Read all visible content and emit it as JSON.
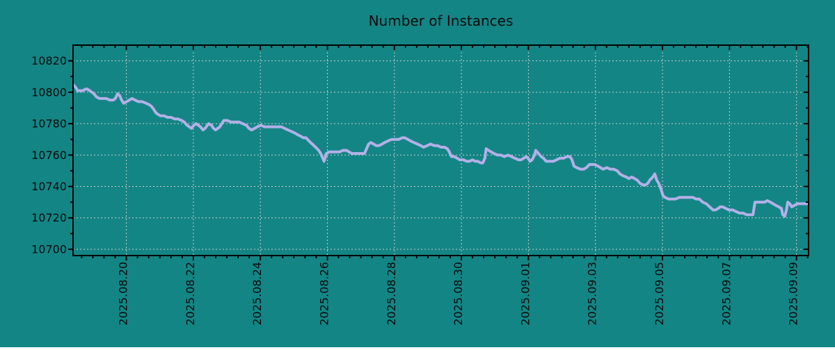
{
  "style": {
    "background": "#148585",
    "line_color": "#b3b0e8",
    "grid_color": "#cccccc",
    "frame_color": "#000000",
    "text_color": "#0a0a0a"
  },
  "chart_data": {
    "type": "line",
    "title": "Number of Instances",
    "xlabel": "",
    "ylabel": "",
    "legend": false,
    "grid": true,
    "x_unit": "days since 2025-08-18 00:00",
    "x_range_days": [
      0.41,
      22.36
    ],
    "y_range": [
      10696,
      10830
    ],
    "y_ticks": [
      10700,
      10720,
      10740,
      10760,
      10780,
      10800,
      10820
    ],
    "y_minor_tick_interval": 10,
    "x_minor_tick_interval_days": 0.3333,
    "x_ticks": [
      {
        "day": 2,
        "label": "2025.08.20"
      },
      {
        "day": 4,
        "label": "2025.08.22"
      },
      {
        "day": 6,
        "label": "2025.08.24"
      },
      {
        "day": 8,
        "label": "2025.08.26"
      },
      {
        "day": 10,
        "label": "2025.08.28"
      },
      {
        "day": 12,
        "label": "2025.08.30"
      },
      {
        "day": 14,
        "label": "2025.09.01"
      },
      {
        "day": 16,
        "label": "2025.09.03"
      },
      {
        "day": 18,
        "label": "2025.09.05"
      },
      {
        "day": 20,
        "label": "2025.09.07"
      },
      {
        "day": 22,
        "label": "2025.09.09"
      }
    ],
    "series": [
      {
        "name": "instances",
        "color": "#b3b0e8",
        "points": [
          [
            0.41,
            10805
          ],
          [
            0.49,
            10803
          ],
          [
            0.55,
            10801
          ],
          [
            0.61,
            10801
          ],
          [
            0.7,
            10801
          ],
          [
            0.78,
            10802
          ],
          [
            0.84,
            10802
          ],
          [
            0.91,
            10801
          ],
          [
            0.97,
            10800
          ],
          [
            1.03,
            10799
          ],
          [
            1.11,
            10797
          ],
          [
            1.2,
            10796
          ],
          [
            1.3,
            10796
          ],
          [
            1.4,
            10796
          ],
          [
            1.51,
            10795
          ],
          [
            1.61,
            10795
          ],
          [
            1.67,
            10796
          ],
          [
            1.74,
            10799
          ],
          [
            1.8,
            10798
          ],
          [
            1.86,
            10795
          ],
          [
            1.92,
            10793
          ],
          [
            2.01,
            10794
          ],
          [
            2.09,
            10795
          ],
          [
            2.17,
            10796
          ],
          [
            2.26,
            10795
          ],
          [
            2.36,
            10794
          ],
          [
            2.48,
            10794
          ],
          [
            2.59,
            10793
          ],
          [
            2.69,
            10792
          ],
          [
            2.75,
            10791
          ],
          [
            2.82,
            10789
          ],
          [
            2.88,
            10787
          ],
          [
            2.94,
            10786
          ],
          [
            3.02,
            10785
          ],
          [
            3.13,
            10785
          ],
          [
            3.23,
            10784
          ],
          [
            3.34,
            10784
          ],
          [
            3.44,
            10783
          ],
          [
            3.54,
            10783
          ],
          [
            3.65,
            10782
          ],
          [
            3.73,
            10781
          ],
          [
            3.81,
            10779
          ],
          [
            3.88,
            10778
          ],
          [
            3.94,
            10777
          ],
          [
            4.02,
            10779
          ],
          [
            4.08,
            10780
          ],
          [
            4.15,
            10779
          ],
          [
            4.21,
            10778
          ],
          [
            4.29,
            10776
          ],
          [
            4.35,
            10777
          ],
          [
            4.42,
            10779
          ],
          [
            4.46,
            10780
          ],
          [
            4.54,
            10779
          ],
          [
            4.6,
            10777
          ],
          [
            4.66,
            10776
          ],
          [
            4.73,
            10777
          ],
          [
            4.79,
            10778
          ],
          [
            4.85,
            10780
          ],
          [
            4.91,
            10782
          ],
          [
            5.02,
            10782
          ],
          [
            5.12,
            10781
          ],
          [
            5.25,
            10781
          ],
          [
            5.37,
            10781
          ],
          [
            5.47,
            10780
          ],
          [
            5.58,
            10779
          ],
          [
            5.66,
            10777
          ],
          [
            5.74,
            10776
          ],
          [
            5.83,
            10777
          ],
          [
            5.91,
            10778
          ],
          [
            6.01,
            10779
          ],
          [
            6.12,
            10778
          ],
          [
            6.24,
            10778
          ],
          [
            6.37,
            10778
          ],
          [
            6.49,
            10778
          ],
          [
            6.62,
            10778
          ],
          [
            6.72,
            10777
          ],
          [
            6.82,
            10776
          ],
          [
            6.93,
            10775
          ],
          [
            7.03,
            10774
          ],
          [
            7.11,
            10773
          ],
          [
            7.2,
            10772
          ],
          [
            7.28,
            10771
          ],
          [
            7.36,
            10771
          ],
          [
            7.45,
            10769
          ],
          [
            7.55,
            10767
          ],
          [
            7.65,
            10765
          ],
          [
            7.74,
            10763
          ],
          [
            7.8,
            10761
          ],
          [
            7.86,
            10758
          ],
          [
            7.9,
            10756
          ],
          [
            7.97,
            10761
          ],
          [
            8.05,
            10762
          ],
          [
            8.15,
            10762
          ],
          [
            8.26,
            10762
          ],
          [
            8.36,
            10762
          ],
          [
            8.47,
            10763
          ],
          [
            8.57,
            10763
          ],
          [
            8.65,
            10762
          ],
          [
            8.73,
            10761
          ],
          [
            8.82,
            10761
          ],
          [
            8.92,
            10761
          ],
          [
            9.03,
            10761
          ],
          [
            9.11,
            10761
          ],
          [
            9.17,
            10764
          ],
          [
            9.23,
            10767
          ],
          [
            9.3,
            10768
          ],
          [
            9.38,
            10767
          ],
          [
            9.46,
            10766
          ],
          [
            9.54,
            10766
          ],
          [
            9.63,
            10767
          ],
          [
            9.71,
            10768
          ],
          [
            9.81,
            10769
          ],
          [
            9.92,
            10770
          ],
          [
            10.02,
            10770
          ],
          [
            10.13,
            10770
          ],
          [
            10.23,
            10771
          ],
          [
            10.31,
            10771
          ],
          [
            10.4,
            10770
          ],
          [
            10.48,
            10769
          ],
          [
            10.58,
            10768
          ],
          [
            10.69,
            10767
          ],
          [
            10.79,
            10766
          ],
          [
            10.87,
            10765
          ],
          [
            10.98,
            10766
          ],
          [
            11.08,
            10767
          ],
          [
            11.19,
            10766
          ],
          [
            11.29,
            10766
          ],
          [
            11.39,
            10765
          ],
          [
            11.5,
            10765
          ],
          [
            11.58,
            10764
          ],
          [
            11.64,
            10762
          ],
          [
            11.7,
            10759
          ],
          [
            11.79,
            10759
          ],
          [
            11.87,
            10758
          ],
          [
            11.95,
            10757
          ],
          [
            12.06,
            10757
          ],
          [
            12.16,
            10756
          ],
          [
            12.24,
            10756
          ],
          [
            12.33,
            10757
          ],
          [
            12.41,
            10756
          ],
          [
            12.49,
            10756
          ],
          [
            12.58,
            10755
          ],
          [
            12.64,
            10755
          ],
          [
            12.7,
            10758
          ],
          [
            12.74,
            10764
          ],
          [
            12.81,
            10763
          ],
          [
            12.89,
            10762
          ],
          [
            12.97,
            10761
          ],
          [
            13.08,
            10760
          ],
          [
            13.18,
            10760
          ],
          [
            13.28,
            10759
          ],
          [
            13.39,
            10760
          ],
          [
            13.49,
            10759
          ],
          [
            13.59,
            10758
          ],
          [
            13.7,
            10757
          ],
          [
            13.78,
            10757
          ],
          [
            13.86,
            10758
          ],
          [
            13.93,
            10759
          ],
          [
            13.99,
            10758
          ],
          [
            14.05,
            10756
          ],
          [
            14.11,
            10757
          ],
          [
            14.18,
            10760
          ],
          [
            14.22,
            10763
          ],
          [
            14.3,
            10761
          ],
          [
            14.38,
            10759
          ],
          [
            14.45,
            10758
          ],
          [
            14.53,
            10756
          ],
          [
            14.63,
            10756
          ],
          [
            14.74,
            10756
          ],
          [
            14.84,
            10757
          ],
          [
            14.94,
            10758
          ],
          [
            15.05,
            10758
          ],
          [
            15.15,
            10759
          ],
          [
            15.24,
            10759
          ],
          [
            15.3,
            10757
          ],
          [
            15.36,
            10753
          ],
          [
            15.44,
            10752
          ],
          [
            15.55,
            10751
          ],
          [
            15.65,
            10751
          ],
          [
            15.73,
            10752
          ],
          [
            15.82,
            10754
          ],
          [
            15.9,
            10754
          ],
          [
            15.98,
            10754
          ],
          [
            16.07,
            10753
          ],
          [
            16.15,
            10752
          ],
          [
            16.23,
            10751
          ],
          [
            16.34,
            10752
          ],
          [
            16.44,
            10751
          ],
          [
            16.54,
            10751
          ],
          [
            16.65,
            10750
          ],
          [
            16.73,
            10748
          ],
          [
            16.81,
            10747
          ],
          [
            16.92,
            10746
          ],
          [
            17.0,
            10745
          ],
          [
            17.08,
            10746
          ],
          [
            17.17,
            10745
          ],
          [
            17.25,
            10744
          ],
          [
            17.33,
            10742
          ],
          [
            17.42,
            10741
          ],
          [
            17.5,
            10741
          ],
          [
            17.56,
            10742
          ],
          [
            17.62,
            10744
          ],
          [
            17.71,
            10746
          ],
          [
            17.77,
            10748
          ],
          [
            17.83,
            10744
          ],
          [
            17.89,
            10742
          ],
          [
            17.96,
            10738
          ],
          [
            18.02,
            10734
          ],
          [
            18.08,
            10733
          ],
          [
            18.18,
            10732
          ],
          [
            18.29,
            10732
          ],
          [
            18.39,
            10732
          ],
          [
            18.5,
            10733
          ],
          [
            18.6,
            10733
          ],
          [
            18.7,
            10733
          ],
          [
            18.81,
            10733
          ],
          [
            18.91,
            10733
          ],
          [
            19.0,
            10732
          ],
          [
            19.1,
            10732
          ],
          [
            19.2,
            10730
          ],
          [
            19.31,
            10729
          ],
          [
            19.41,
            10727
          ],
          [
            19.51,
            10725
          ],
          [
            19.58,
            10725
          ],
          [
            19.66,
            10726
          ],
          [
            19.72,
            10727
          ],
          [
            19.8,
            10727
          ],
          [
            19.89,
            10726
          ],
          [
            19.99,
            10725
          ],
          [
            20.1,
            10725
          ],
          [
            20.2,
            10724
          ],
          [
            20.3,
            10723
          ],
          [
            20.41,
            10723
          ],
          [
            20.51,
            10722
          ],
          [
            20.61,
            10722
          ],
          [
            20.7,
            10722
          ],
          [
            20.76,
            10730
          ],
          [
            20.84,
            10730
          ],
          [
            20.95,
            10730
          ],
          [
            21.05,
            10730
          ],
          [
            21.13,
            10731
          ],
          [
            21.22,
            10730
          ],
          [
            21.3,
            10729
          ],
          [
            21.38,
            10728
          ],
          [
            21.47,
            10727
          ],
          [
            21.55,
            10726
          ],
          [
            21.59,
            10722
          ],
          [
            21.65,
            10721
          ],
          [
            21.7,
            10725
          ],
          [
            21.74,
            10730
          ],
          [
            21.8,
            10729
          ],
          [
            21.86,
            10727
          ],
          [
            21.94,
            10728
          ],
          [
            22.03,
            10729
          ],
          [
            22.13,
            10729
          ],
          [
            22.23,
            10729
          ],
          [
            22.36,
            10729
          ]
        ]
      }
    ]
  }
}
